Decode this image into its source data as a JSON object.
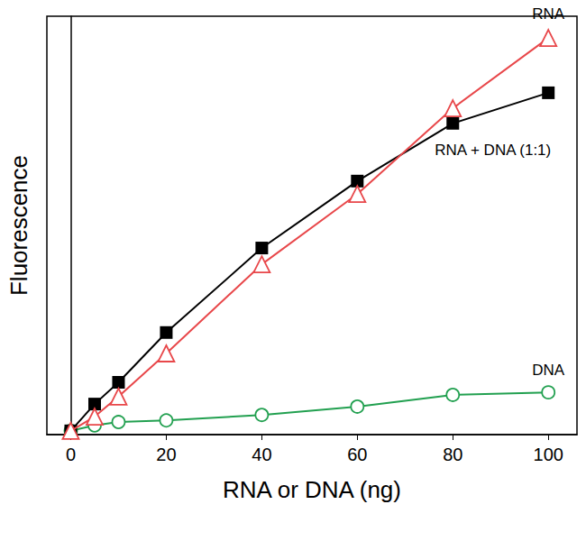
{
  "chart_data": {
    "type": "line",
    "x_label": "RNA or DNA (ng)",
    "y_label": "Fluorescence",
    "x": [
      0,
      5,
      10,
      20,
      40,
      60,
      80,
      100
    ],
    "series": [
      {
        "name": "RNA",
        "color": "#e8474a",
        "marker": "open-triangle",
        "values": [
          0.9,
          4.3,
          9.1,
          19.4,
          40.7,
          57.5,
          78.0,
          94.8
        ]
      },
      {
        "name": "RNA + DNA (1:1)",
        "color": "#000000",
        "marker": "square",
        "values": [
          0.9,
          7.3,
          12.5,
          24.4,
          44.6,
          60.6,
          74.4,
          81.7
        ]
      },
      {
        "name": "DNA",
        "color": "#22a050",
        "marker": "open-circle",
        "values": [
          0.9,
          2.2,
          3.0,
          3.4,
          4.7,
          6.7,
          9.5,
          10.1
        ]
      }
    ],
    "xlim": [
      -5,
      106
    ],
    "xticks": [
      0,
      20,
      40,
      60,
      80,
      100
    ],
    "ylim": [
      0,
      100
    ],
    "tick_labels": "x",
    "grid": false
  }
}
